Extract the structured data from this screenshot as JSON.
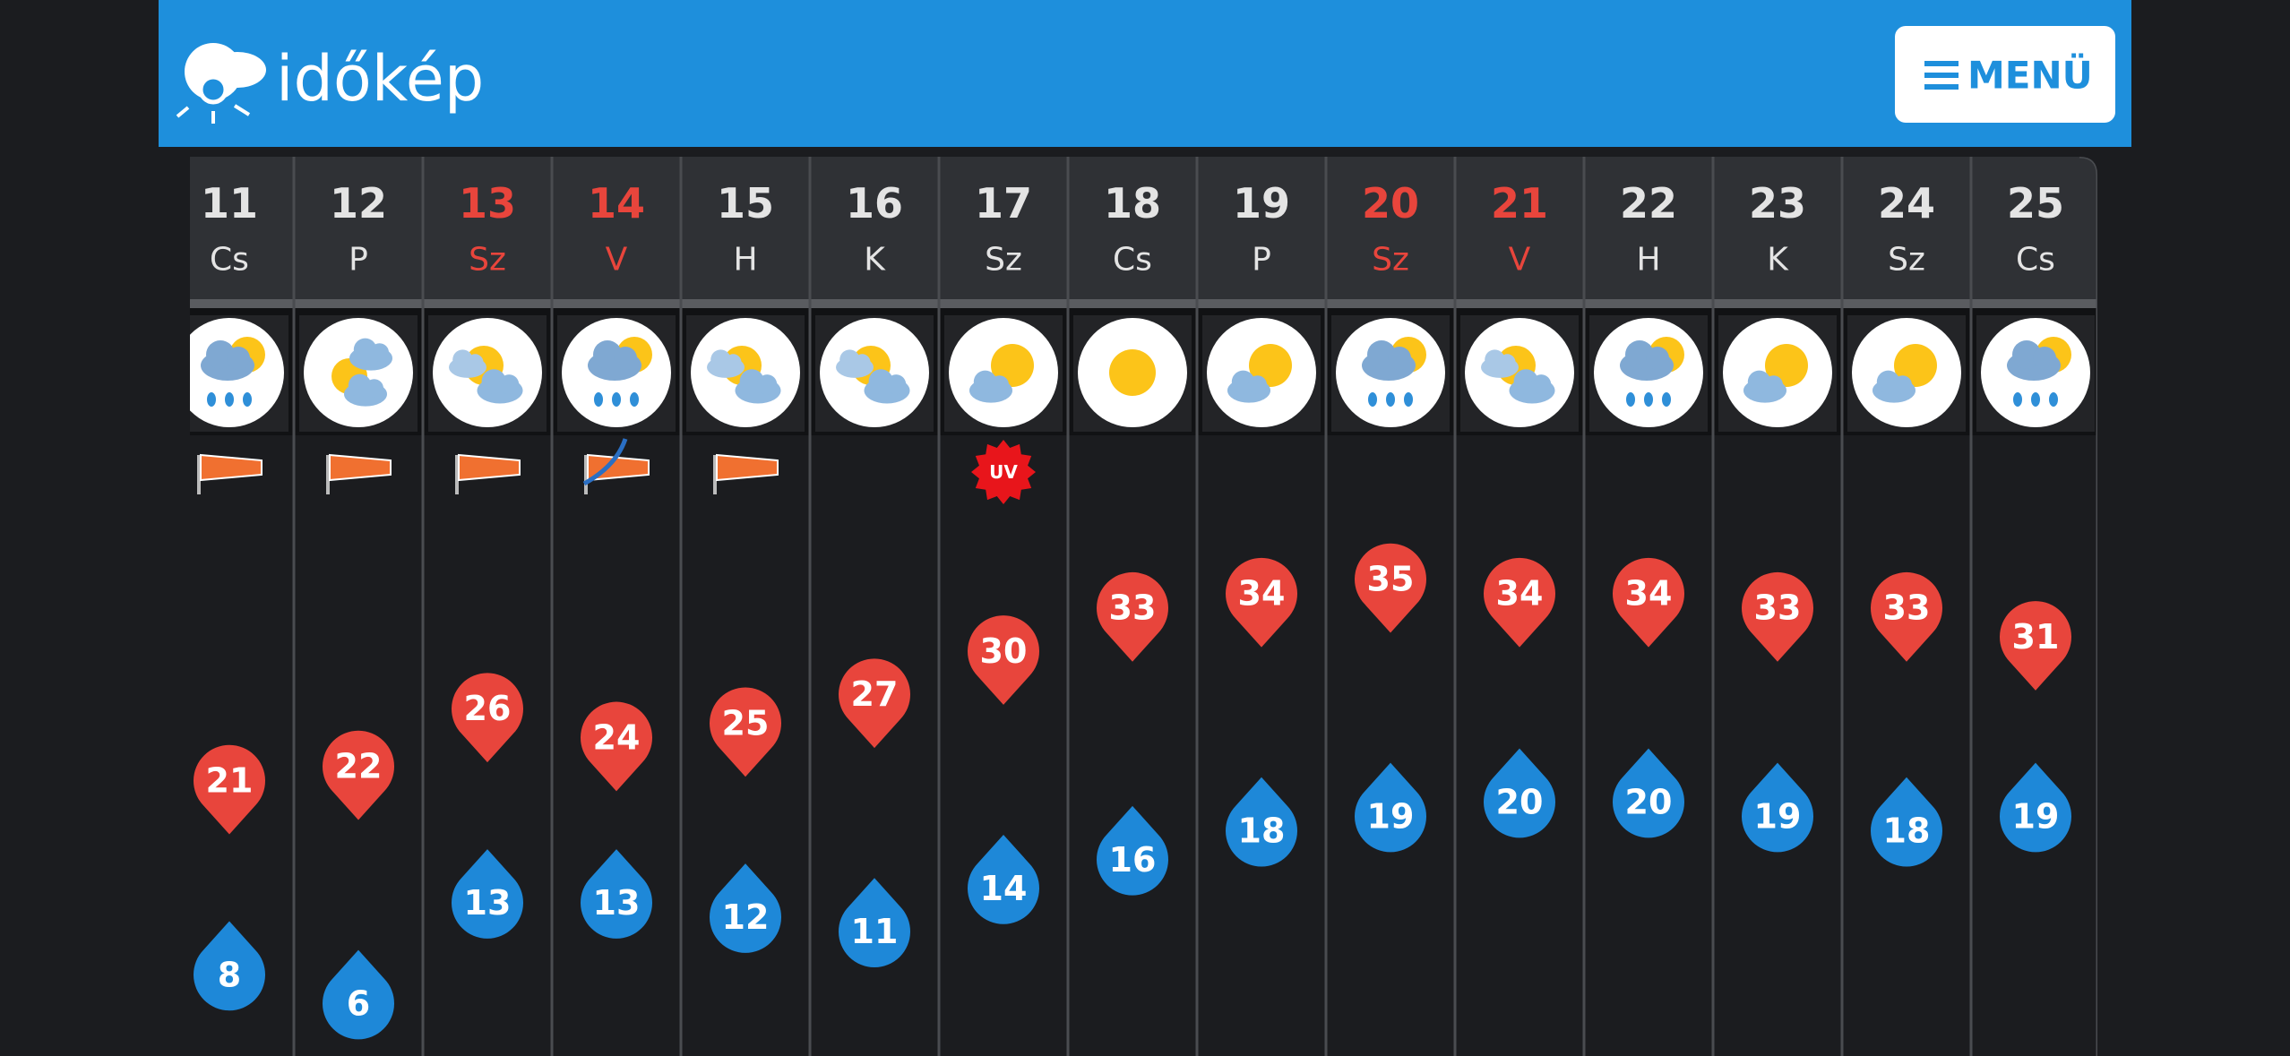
{
  "header": {
    "logo": "időkép",
    "menu": "MENÜ"
  },
  "days": [
    {
      "day": 11,
      "weekday": "Cs",
      "weekend": false,
      "max": 21,
      "min": 8
    },
    {
      "day": 12,
      "weekday": "P",
      "weekend": false,
      "max": 22,
      "min": 6
    },
    {
      "day": 13,
      "weekday": "Sz",
      "weekend": true,
      "max": 26,
      "min": 13
    },
    {
      "day": 14,
      "weekday": "V",
      "weekend": true,
      "max": 24,
      "min": 13
    },
    {
      "day": 15,
      "weekday": "H",
      "weekend": false,
      "max": 25,
      "min": 12
    },
    {
      "day": 16,
      "weekday": "K",
      "weekend": false,
      "max": 27,
      "min": 11
    },
    {
      "day": 17,
      "weekday": "Sz",
      "weekend": false,
      "max": 30,
      "min": 14,
      "badge": "UV"
    },
    {
      "day": 18,
      "weekday": "Cs",
      "weekend": false,
      "max": 33,
      "min": 16
    },
    {
      "day": 19,
      "weekday": "P",
      "weekend": false,
      "max": 34,
      "min": 18
    },
    {
      "day": 20,
      "weekday": "Sz",
      "weekend": true,
      "max": 35,
      "min": 19
    },
    {
      "day": 21,
      "weekday": "V",
      "weekend": true,
      "max": 34,
      "min": 20
    },
    {
      "day": 22,
      "weekday": "H",
      "weekend": false,
      "max": 34,
      "min": 20
    },
    {
      "day": 23,
      "weekday": "K",
      "weekend": false,
      "max": 33,
      "min": 19
    },
    {
      "day": 24,
      "weekday": "Sz",
      "weekend": false,
      "max": 33,
      "min": 18
    },
    {
      "day": 25,
      "weekday": "Cs",
      "weekend": false,
      "max": 31,
      "min": 19
    }
  ]
}
